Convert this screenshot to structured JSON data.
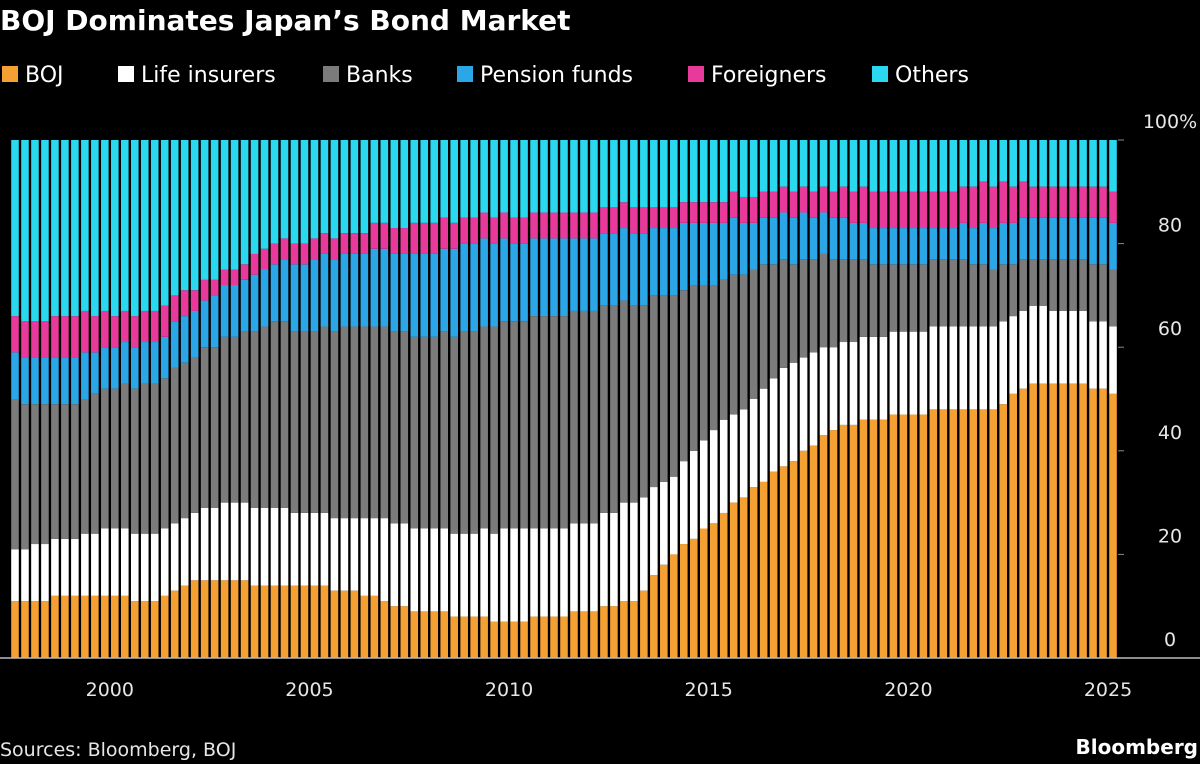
{
  "chart_data": {
    "type": "stacked-bar",
    "title": "BOJ Dominates Japan’s Bond Market",
    "source": "Sources: Bloomberg, BOJ",
    "credit": "Bloomberg",
    "categories": [
      null,
      null,
      null,
      null,
      null,
      null,
      null,
      null,
      null,
      null,
      "2000",
      null,
      null,
      null,
      null,
      null,
      null,
      null,
      null,
      null,
      null,
      null,
      null,
      null,
      null,
      null,
      null,
      null,
      null,
      null,
      "2005",
      null,
      null,
      null,
      null,
      null,
      null,
      null,
      null,
      null,
      null,
      null,
      null,
      null,
      null,
      null,
      null,
      null,
      null,
      null,
      "2010",
      null,
      null,
      null,
      null,
      null,
      null,
      null,
      null,
      null,
      null,
      null,
      null,
      null,
      null,
      null,
      null,
      null,
      null,
      null,
      "2015",
      null,
      null,
      null,
      null,
      null,
      null,
      null,
      null,
      null,
      null,
      null,
      null,
      null,
      null,
      null,
      null,
      null,
      null,
      null,
      "2020",
      null,
      null,
      null,
      null,
      null,
      null,
      null,
      null,
      null,
      null,
      null,
      null,
      null,
      null,
      null,
      null,
      null,
      null,
      null,
      "2025"
    ],
    "series": [
      {
        "name": "BOJ",
        "color": "#f5a032",
        "values": [
          11,
          11,
          11,
          11,
          12,
          12,
          12,
          12,
          12,
          12,
          12,
          12,
          11,
          11,
          11,
          12,
          13,
          14,
          15,
          15,
          15,
          15,
          15,
          15,
          14,
          14,
          14,
          14,
          14,
          14,
          14,
          14,
          13,
          13,
          13,
          12,
          12,
          11,
          10,
          10,
          9,
          9,
          9,
          9,
          8,
          8,
          8,
          8,
          7,
          7,
          7,
          7,
          8,
          8,
          8,
          8,
          9,
          9,
          9,
          10,
          10,
          11,
          11,
          13,
          16,
          18,
          20,
          22,
          23,
          25,
          26,
          28,
          30,
          31,
          33,
          34,
          36,
          37,
          38,
          40,
          41,
          43,
          44,
          45,
          45,
          46,
          46,
          46,
          47,
          47,
          47,
          47,
          48,
          48,
          48,
          48,
          48,
          48,
          48,
          49,
          51,
          52,
          53,
          53,
          53,
          53,
          53,
          53,
          52,
          52,
          51
        ]
      },
      {
        "name": "Life insurers",
        "color": "#ffffff",
        "values": [
          10,
          10,
          11,
          11,
          11,
          11,
          11,
          12,
          12,
          13,
          13,
          13,
          13,
          13,
          13,
          13,
          13,
          13,
          13,
          14,
          14,
          15,
          15,
          15,
          15,
          15,
          15,
          15,
          14,
          14,
          14,
          14,
          14,
          14,
          14,
          15,
          15,
          16,
          16,
          16,
          16,
          16,
          16,
          16,
          16,
          16,
          16,
          17,
          17,
          18,
          18,
          18,
          17,
          17,
          17,
          17,
          17,
          17,
          17,
          18,
          18,
          19,
          19,
          18,
          17,
          16,
          15,
          16,
          17,
          17,
          18,
          18,
          17,
          17,
          17,
          18,
          18,
          19,
          19,
          18,
          18,
          17,
          16,
          16,
          16,
          16,
          16,
          16,
          16,
          16,
          16,
          16,
          16,
          16,
          16,
          16,
          16,
          16,
          16,
          16,
          15,
          15,
          15,
          15,
          14,
          14,
          14,
          14,
          13,
          13,
          13
        ]
      },
      {
        "name": "Banks",
        "color": "#7b7b7b",
        "values": [
          29,
          28,
          27,
          27,
          26,
          26,
          26,
          26,
          27,
          27,
          27,
          28,
          28,
          29,
          29,
          29,
          30,
          30,
          30,
          31,
          31,
          32,
          32,
          33,
          34,
          35,
          36,
          36,
          35,
          35,
          35,
          36,
          36,
          37,
          37,
          37,
          37,
          37,
          37,
          37,
          37,
          37,
          37,
          38,
          38,
          39,
          39,
          39,
          40,
          40,
          40,
          40,
          41,
          41,
          41,
          41,
          41,
          41,
          41,
          40,
          40,
          39,
          38,
          37,
          37,
          36,
          35,
          33,
          32,
          30,
          28,
          27,
          27,
          26,
          25,
          24,
          22,
          21,
          19,
          19,
          18,
          18,
          17,
          16,
          16,
          15,
          14,
          14,
          13,
          13,
          13,
          13,
          13,
          13,
          13,
          13,
          12,
          12,
          11,
          11,
          10,
          10,
          9,
          9,
          10,
          10,
          10,
          10,
          11,
          11,
          11
        ]
      },
      {
        "name": "Pension funds",
        "color": "#2ba6e6",
        "values": [
          9,
          9,
          9,
          9,
          9,
          9,
          9,
          9,
          8,
          8,
          8,
          8,
          8,
          8,
          8,
          8,
          9,
          9,
          9,
          9,
          10,
          10,
          10,
          10,
          11,
          11,
          11,
          12,
          13,
          13,
          14,
          14,
          14,
          14,
          14,
          14,
          15,
          15,
          15,
          15,
          16,
          16,
          16,
          16,
          17,
          17,
          17,
          17,
          16,
          16,
          15,
          15,
          15,
          15,
          15,
          15,
          14,
          14,
          14,
          14,
          14,
          14,
          14,
          14,
          13,
          13,
          13,
          13,
          12,
          12,
          12,
          11,
          11,
          10,
          9,
          9,
          9,
          9,
          9,
          9,
          8,
          8,
          8,
          8,
          7,
          7,
          7,
          7,
          7,
          7,
          7,
          7,
          6,
          6,
          6,
          7,
          7,
          8,
          8,
          8,
          8,
          8,
          8,
          8,
          8,
          8,
          8,
          8,
          9,
          9,
          9
        ]
      },
      {
        "name": "Foreigners",
        "color": "#e83a9a",
        "values": [
          7,
          7,
          7,
          7,
          8,
          8,
          8,
          8,
          7,
          7,
          6,
          6,
          6,
          6,
          6,
          6,
          5,
          5,
          4,
          4,
          3,
          3,
          3,
          3,
          4,
          4,
          4,
          4,
          4,
          4,
          4,
          4,
          4,
          4,
          4,
          4,
          5,
          5,
          5,
          5,
          6,
          6,
          6,
          6,
          5,
          5,
          5,
          5,
          5,
          5,
          5,
          5,
          5,
          5,
          5,
          5,
          5,
          5,
          5,
          5,
          5,
          5,
          5,
          5,
          4,
          4,
          4,
          4,
          4,
          4,
          4,
          4,
          5,
          5,
          5,
          5,
          5,
          5,
          5,
          5,
          5,
          5,
          5,
          6,
          6,
          7,
          7,
          7,
          7,
          7,
          7,
          7,
          7,
          7,
          7,
          7,
          8,
          8,
          8,
          8,
          7,
          7,
          6,
          6,
          6,
          6,
          6,
          6,
          6,
          6,
          6
        ]
      },
      {
        "name": "Others",
        "color": "#2ad8ef",
        "values": [
          34,
          35,
          35,
          35,
          34,
          34,
          34,
          33,
          34,
          33,
          34,
          33,
          34,
          33,
          33,
          32,
          30,
          29,
          29,
          27,
          27,
          25,
          25,
          24,
          22,
          21,
          20,
          19,
          20,
          20,
          19,
          18,
          19,
          18,
          18,
          18,
          16,
          16,
          17,
          17,
          16,
          16,
          16,
          15,
          16,
          15,
          15,
          14,
          15,
          14,
          15,
          15,
          14,
          14,
          14,
          14,
          14,
          14,
          14,
          13,
          13,
          12,
          13,
          13,
          13,
          13,
          13,
          12,
          12,
          12,
          12,
          12,
          10,
          11,
          11,
          10,
          10,
          9,
          10,
          9,
          10,
          9,
          10,
          9,
          10,
          9,
          10,
          10,
          10,
          10,
          10,
          10,
          10,
          10,
          10,
          9,
          9,
          8,
          9,
          8,
          9,
          8,
          9,
          9,
          9,
          9,
          9,
          9,
          9,
          9,
          10
        ]
      }
    ],
    "ylim": [
      0,
      100
    ],
    "yticks": [
      0,
      20,
      40,
      60,
      80,
      {
        "value": 100,
        "label": "100%"
      }
    ]
  }
}
